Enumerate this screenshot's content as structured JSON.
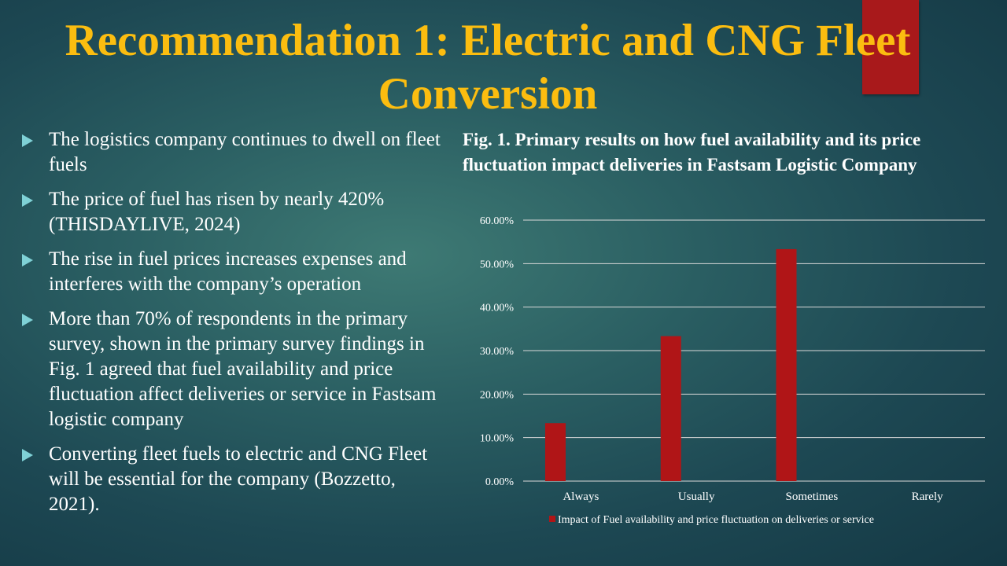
{
  "slide": {
    "title": "Recommendation 1: Electric and CNG Fleet Conversion",
    "bullets": [
      "The logistics company continues to dwell on fleet fuels",
      "The price of fuel has risen by nearly 420% (THISDAYLIVE, 2024)",
      "The rise in fuel prices increases expenses and interferes with the company’s operation",
      "More than 70% of respondents in the primary survey, shown in the primary survey findings in Fig. 1 agreed that fuel availability and price fluctuation affect deliveries or service in Fastsam logistic company",
      "Converting fleet fuels to electric and CNG Fleet will be essential for the company (Bozzetto, 2021)."
    ],
    "figure_title": "Fig. 1. Primary results on how fuel availability and its price fluctuation impact deliveries in Fastsam Logistic Company"
  },
  "colors": {
    "background": "#1d4853",
    "title": "#fbbd10",
    "accent": "#a8191b",
    "bullet_marker": "#7fd1d6",
    "bar": "#b01517"
  },
  "icons": {
    "bullet": "triangle-right-icon"
  },
  "chart_data": {
    "type": "bar",
    "categories": [
      "Always",
      "Usually",
      "Sometimes",
      "Rarely"
    ],
    "series": [
      {
        "name": "Impact of Fuel availability and price fluctuation on deliveries or service",
        "values": [
          0.1333,
          0.3333,
          0.5333,
          0
        ]
      }
    ],
    "ylim": [
      0,
      0.6
    ],
    "yticks": [
      0,
      0.1,
      0.2,
      0.3,
      0.4,
      0.5,
      0.6
    ],
    "ytick_labels": [
      "0.00%",
      "10.00%",
      "20.00%",
      "30.00%",
      "40.00%",
      "50.00%",
      "60.00%"
    ],
    "grid": true,
    "legend_position": "bottom",
    "xlabel": "",
    "ylabel": ""
  }
}
